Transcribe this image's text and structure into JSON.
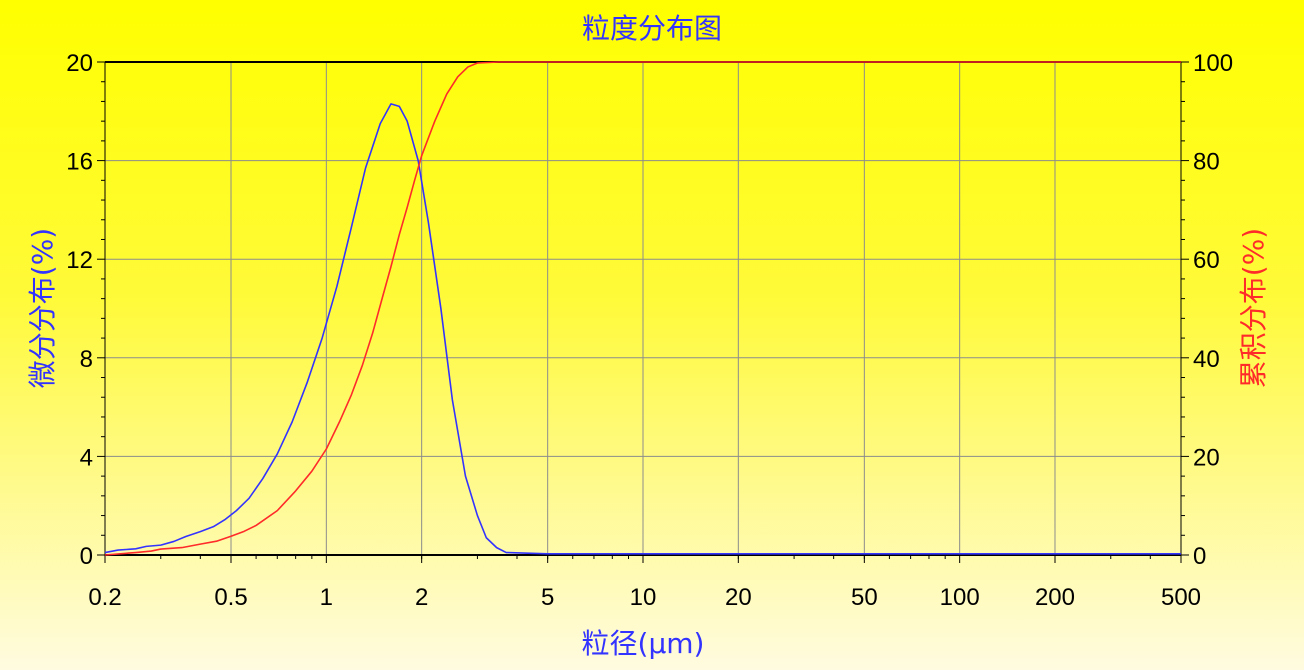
{
  "chart_data": {
    "type": "line",
    "title": "粒度分布图",
    "xlabel": "粒径(μm)",
    "ylabel_left": "微分分布(%)",
    "ylabel_right": "累积分布(%)",
    "x_scale": "log",
    "xlim": [
      0.2,
      500
    ],
    "ylim_left": [
      0,
      20
    ],
    "ylim_right": [
      0,
      100
    ],
    "x_ticks": [
      "0.2",
      "0.5",
      "1",
      "2",
      "5",
      "10",
      "20",
      "50",
      "100",
      "200",
      "500"
    ],
    "y_ticks_left": [
      "0",
      "4",
      "8",
      "12",
      "16",
      "20"
    ],
    "y_ticks_right": [
      "0",
      "20",
      "40",
      "60",
      "80",
      "100"
    ],
    "grid": true,
    "colors": {
      "differential": "#3333ff",
      "cumulative": "#ff2a2a",
      "grid": "#8c8c8c",
      "axis": "#000000"
    },
    "series": [
      {
        "axis": "left",
        "x": [
          0.2,
          0.22,
          0.25,
          0.27,
          0.3,
          0.33,
          0.36,
          0.4,
          0.44,
          0.48,
          0.52,
          0.57,
          0.63,
          0.7,
          0.78,
          0.87,
          0.97,
          1.08,
          1.2,
          1.33,
          1.48,
          1.6,
          1.7,
          1.8,
          1.95,
          2.1,
          2.3,
          2.5,
          2.75,
          3.0,
          3.2,
          3.45,
          3.7,
          5,
          10,
          50,
          100,
          500
        ],
        "values": [
          0.1,
          0.2,
          0.25,
          0.35,
          0.4,
          0.55,
          0.75,
          0.95,
          1.15,
          1.45,
          1.8,
          2.3,
          3.1,
          4.1,
          5.4,
          7.0,
          8.8,
          10.9,
          13.3,
          15.7,
          17.5,
          18.3,
          18.2,
          17.6,
          16.0,
          13.5,
          10.0,
          6.3,
          3.2,
          1.6,
          0.7,
          0.3,
          0.1,
          0.05,
          0.05,
          0.05,
          0.05,
          0.05
        ]
      },
      {
        "axis": "right",
        "x": [
          0.2,
          0.25,
          0.28,
          0.3,
          0.35,
          0.4,
          0.45,
          0.5,
          0.55,
          0.6,
          0.7,
          0.8,
          0.9,
          1.0,
          1.1,
          1.2,
          1.3,
          1.4,
          1.5,
          1.6,
          1.7,
          1.8,
          1.9,
          2.0,
          2.2,
          2.4,
          2.6,
          2.8,
          3.0,
          3.5,
          5,
          10,
          50,
          100,
          500
        ],
        "values": [
          0,
          0.5,
          0.8,
          1.2,
          1.5,
          2.2,
          2.8,
          3.8,
          4.8,
          6.0,
          9.0,
          13.0,
          17.0,
          21.5,
          27.0,
          32.5,
          38.5,
          45.0,
          52.0,
          58.5,
          65.0,
          70.5,
          76.0,
          81.0,
          88.0,
          93.5,
          97.0,
          99.0,
          99.8,
          100,
          100,
          100,
          100,
          100,
          100
        ]
      }
    ]
  }
}
